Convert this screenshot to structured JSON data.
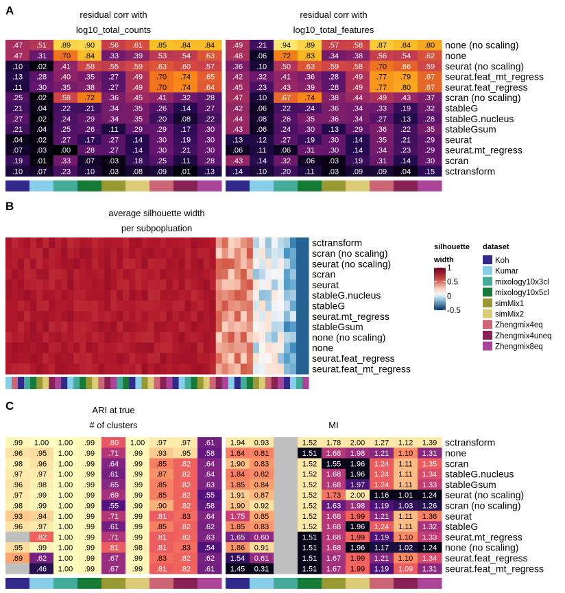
{
  "colors": {
    "datasets": [
      "#312a8b",
      "#87ceeb",
      "#44aa99",
      "#157a35",
      "#999933",
      "#ddcc77",
      "#cc6677",
      "#882255",
      "#aa4499"
    ],
    "na": "#bfbfbf"
  },
  "panel_a": {
    "letter": "A",
    "left_title": [
      "residual corr with",
      "log10_total_counts"
    ],
    "right_title": [
      "residual corr with",
      "log10_total_features"
    ]
  },
  "panel_b": {
    "letter": "B",
    "title": [
      "average silhouette width",
      "per subpopluation"
    ],
    "legend_title": [
      "silhouette",
      "width"
    ],
    "legend_ticks": [
      "1",
      "0.5",
      "0",
      "-0.5"
    ],
    "dataset_legend_title": "dataset",
    "datasets": [
      "Koh",
      "Kumar",
      "mixology10x3cl",
      "mixology10x5cl",
      "simMix1",
      "simMix2",
      "Zhengmix4eq",
      "Zhengmix4uneq",
      "Zhengmix8eq"
    ]
  },
  "panel_c": {
    "letter": "C",
    "left_title": [
      "ARI at true",
      "# of clusters"
    ],
    "right_title": [
      "MI"
    ]
  },
  "chart_data": [
    {
      "type": "heatmap",
      "title": "residual corr with log10_total_counts",
      "rows": [
        "none (no scaling)",
        "none",
        "seurat (no scaling)",
        "seurat.feat_mt_regress",
        "seurat.feat_regress",
        "scran (no scaling)",
        "stableG",
        "stableG.nucleus",
        "stableGsum",
        "seurat",
        "seurat.mt_regress",
        "scran",
        "sctransform"
      ],
      "columns": [
        "Koh",
        "Kumar",
        "mixology10x3cl",
        "mixology10x5cl",
        "simMix1",
        "simMix2",
        "Zhengmix4eq",
        "Zhengmix4uneq",
        "Zhengmix8eq"
      ],
      "color_range": [
        0,
        1
      ],
      "values": [
        [
          ".47",
          ".51",
          ".89",
          ".90",
          ".56",
          ".61",
          ".85",
          ".84",
          ".84"
        ],
        [
          ".47",
          ".31",
          ".70",
          ".84",
          ".33",
          ".39",
          ".53",
          ".54",
          ".63"
        ],
        [
          ".10",
          ".02",
          ".41",
          ".58",
          ".55",
          ".59",
          ".63",
          ".60",
          ".57"
        ],
        [
          ".13",
          ".28",
          ".40",
          ".35",
          ".27",
          ".49",
          ".70",
          ".74",
          ".65"
        ],
        [
          ".11",
          ".30",
          ".35",
          ".38",
          ".27",
          ".49",
          ".70",
          ".74",
          ".64"
        ],
        [
          ".25",
          ".02",
          ".58",
          ".72",
          ".36",
          ".45",
          ".41",
          ".32",
          ".28"
        ],
        [
          ".21",
          ".04",
          ".22",
          ".21",
          ".34",
          ".35",
          ".26",
          ".14",
          ".27"
        ],
        [
          ".27",
          ".02",
          ".24",
          ".29",
          ".34",
          ".35",
          ".20",
          ".08",
          ".22"
        ],
        [
          ".21",
          ".04",
          ".25",
          ".26",
          ".11",
          ".29",
          ".29",
          ".17",
          ".30"
        ],
        [
          ".04",
          ".02",
          ".27",
          ".17",
          ".27",
          ".14",
          ".30",
          ".19",
          ".30"
        ],
        [
          ".07",
          ".03",
          ".00",
          ".28",
          ".27",
          ".14",
          ".30",
          ".21",
          ".30"
        ],
        [
          ".19",
          ".01",
          ".33",
          ".07",
          ".03",
          ".18",
          ".25",
          ".11",
          ".28"
        ],
        [
          ".10",
          ".07",
          ".23",
          ".10",
          ".03",
          ".08",
          ".09",
          ".01",
          ".13"
        ]
      ]
    },
    {
      "type": "heatmap",
      "title": "residual corr with log10_total_features",
      "rows": [
        "none (no scaling)",
        "none",
        "seurat (no scaling)",
        "seurat.feat_mt_regress",
        "seurat.feat_regress",
        "scran (no scaling)",
        "stableG",
        "stableG.nucleus",
        "stableGsum",
        "seurat",
        "seurat.mt_regress",
        "scran",
        "sctransform"
      ],
      "columns": [
        "Koh",
        "Kumar",
        "mixology10x3cl",
        "mixology10x5cl",
        "simMix1",
        "simMix2",
        "Zhengmix4eq",
        "Zhengmix4uneq",
        "Zhengmix8eq"
      ],
      "color_range": [
        0,
        1
      ],
      "values": [
        [
          ".49",
          ".21",
          ".94",
          ".89",
          ".57",
          ".58",
          ".87",
          ".84",
          ".80"
        ],
        [
          ".48",
          ".06",
          ".72",
          ".83",
          ".34",
          ".38",
          ".56",
          ".54",
          ".62"
        ],
        [
          ".36",
          ".10",
          ".50",
          ".63",
          ".59",
          ".58",
          ".70",
          ".66",
          ".59"
        ],
        [
          ".42",
          ".32",
          ".41",
          ".36",
          ".28",
          ".49",
          ".77",
          ".79",
          ".67"
        ],
        [
          ".45",
          ".23",
          ".43",
          ".39",
          ".28",
          ".49",
          ".77",
          ".80",
          ".67"
        ],
        [
          ".47",
          ".10",
          ".67",
          ".74",
          ".38",
          ".44",
          ".49",
          ".43",
          ".37"
        ],
        [
          ".42",
          ".06",
          ".22",
          ".24",
          ".36",
          ".34",
          ".33",
          ".19",
          ".32"
        ],
        [
          ".44",
          ".08",
          ".26",
          ".35",
          ".36",
          ".34",
          ".27",
          ".13",
          ".28"
        ],
        [
          ".43",
          ".06",
          ".24",
          ".30",
          ".13",
          ".29",
          ".36",
          ".22",
          ".35"
        ],
        [
          ".13",
          ".12",
          ".27",
          ".19",
          ".30",
          ".14",
          ".35",
          ".21",
          ".29"
        ],
        [
          ".06",
          ".11",
          ".06",
          ".31",
          ".30",
          ".14",
          ".34",
          ".23",
          ".29"
        ],
        [
          ".43",
          ".14",
          ".32",
          ".06",
          ".03",
          ".19",
          ".31",
          ".14",
          ".30"
        ],
        [
          ".14",
          ".10",
          ".20",
          ".11",
          ".03",
          ".09",
          ".09",
          ".04",
          ".15"
        ]
      ]
    },
    {
      "type": "heatmap",
      "title": "average silhouette width per subpopluation",
      "rows": [
        "sctransform",
        "scran (no scaling)",
        "seurat (no scaling)",
        "scran",
        "seurat",
        "stableG.nucleus",
        "stableG",
        "seurat.mt_regress",
        "stableGsum",
        "none (no scaling)",
        "none",
        "seurat.feat_regress",
        "seurat.feat_mt_regress"
      ],
      "color_range": [
        -0.5,
        1
      ],
      "n_columns": 49,
      "note": "column values approximate"
    },
    {
      "type": "heatmap",
      "title": "ARI at true # of clusters",
      "rows": [
        "sctransform",
        "none",
        "scran",
        "stableG.nucleus",
        "stableGsum",
        "seurat (no scaling)",
        "scran (no scaling)",
        "seurat",
        "stableG",
        "seurat.mt_regress",
        "none (no scaling)",
        "seurat.feat_regress",
        "seurat.feat_mt_regress"
      ],
      "columns": [
        "Koh",
        "Kumar",
        "mixology10x3cl",
        "mixology10x5cl",
        "simMix1",
        "simMix2",
        "Zhengmix4eq",
        "Zhengmix4uneq",
        "Zhengmix8eq"
      ],
      "values": [
        [
          ".99",
          "1.00",
          "1.00",
          ".99",
          ".80",
          "1.00",
          ".97",
          ".97",
          ".61"
        ],
        [
          ".96",
          ".95",
          "1.00",
          ".99",
          ".71",
          ".99",
          ".93",
          ".95",
          ".58"
        ],
        [
          ".98",
          ".96",
          "1.00",
          ".99",
          ".64",
          ".99",
          ".85",
          ".82",
          ".64"
        ],
        [
          ".97",
          ".97",
          "1.00",
          ".99",
          ".61",
          ".99",
          ".87",
          ".82",
          ".64"
        ],
        [
          ".96",
          ".98",
          "1.00",
          ".99",
          ".65",
          ".99",
          ".85",
          ".82",
          ".63"
        ],
        [
          ".97",
          ".99",
          "1.00",
          ".99",
          ".69",
          ".99",
          ".85",
          ".82",
          ".55"
        ],
        [
          ".98",
          ".99",
          "1.00",
          ".99",
          ".55",
          ".99",
          ".90",
          ".82",
          ".58"
        ],
        [
          ".93",
          ".94",
          "1.00",
          ".99",
          ".71",
          ".99",
          ".81",
          ".83",
          ".64"
        ],
        [
          ".96",
          ".97",
          "1.00",
          ".99",
          ".61",
          ".99",
          ".85",
          ".82",
          ".62"
        ],
        [
          null,
          ".82",
          "1.00",
          ".99",
          ".71",
          ".99",
          ".81",
          ".82",
          ".63"
        ],
        [
          ".95",
          ".99",
          "1.00",
          ".99",
          ".81",
          ".98",
          ".81",
          ".83",
          ".54"
        ],
        [
          ".89",
          ".62",
          "1.00",
          ".99",
          ".67",
          ".99",
          ".83",
          ".82",
          ".62"
        ],
        [
          null,
          ".46",
          "1.00",
          ".99",
          ".67",
          ".99",
          ".81",
          ".82",
          ".61"
        ]
      ]
    },
    {
      "type": "heatmap",
      "title": "MI",
      "rows": [
        "sctransform",
        "none",
        "scran",
        "stableG.nucleus",
        "stableGsum",
        "seurat (no scaling)",
        "scran (no scaling)",
        "seurat",
        "stableG",
        "seurat.mt_regress",
        "none (no scaling)",
        "seurat.feat_regress",
        "seurat.feat_mt_regress"
      ],
      "columns": [
        "Koh",
        "Kumar",
        "mixology10x3cl",
        "mixology10x5cl",
        "simMix1",
        "simMix2",
        "Zhengmix4eq",
        "Zhengmix4uneq",
        "Zhengmix8eq"
      ],
      "values": [
        [
          "1.94",
          "0.93",
          null,
          "1.52",
          "1.78",
          "2.00",
          "1.27",
          "1.12",
          "1.39"
        ],
        [
          "1.84",
          "0.81",
          null,
          "1.51",
          "1.68",
          "1.98",
          "1.21",
          "1.10",
          "1.31"
        ],
        [
          "1.90",
          "0.83",
          null,
          "1.52",
          "1.55",
          "1.96",
          "1.24",
          "1.11",
          "1.35"
        ],
        [
          "1.84",
          "0.82",
          null,
          "1.52",
          "1.68",
          "1.96",
          "1.24",
          "1.11",
          "1.34"
        ],
        [
          "1.85",
          "0.84",
          null,
          "1.52",
          "1.68",
          "1.97",
          "1.24",
          "1.11",
          "1.33"
        ],
        [
          "1.91",
          "0.87",
          null,
          "1.52",
          "1.73",
          "2.00",
          "1.16",
          "1.01",
          "1.24"
        ],
        [
          "1.90",
          "0.92",
          null,
          "1.52",
          "1.63",
          "1.98",
          "1.19",
          "1.03",
          "1.26"
        ],
        [
          "1.75",
          "0.85",
          null,
          "1.52",
          "1.68",
          "1.99",
          "1.21",
          "1.11",
          "1.36"
        ],
        [
          "1.85",
          "0.83",
          null,
          "1.52",
          "1.68",
          "1.96",
          "1.24",
          "1.11",
          "1.32"
        ],
        [
          "1.65",
          "0.60",
          null,
          "1.51",
          "1.68",
          "1.99",
          "1.19",
          "1.10",
          "1.33"
        ],
        [
          "1.86",
          "0.91",
          null,
          "1.51",
          "1.68",
          "1.96",
          "1.17",
          "1.02",
          "1.24"
        ],
        [
          "1.54",
          "0.61",
          null,
          "1.51",
          "1.67",
          "1.99",
          "1.21",
          "1.10",
          "1.34"
        ],
        [
          "1.45",
          "0.31",
          null,
          "1.51",
          "1.67",
          "1.99",
          "1.19",
          "1.09",
          "1.31"
        ]
      ]
    }
  ]
}
